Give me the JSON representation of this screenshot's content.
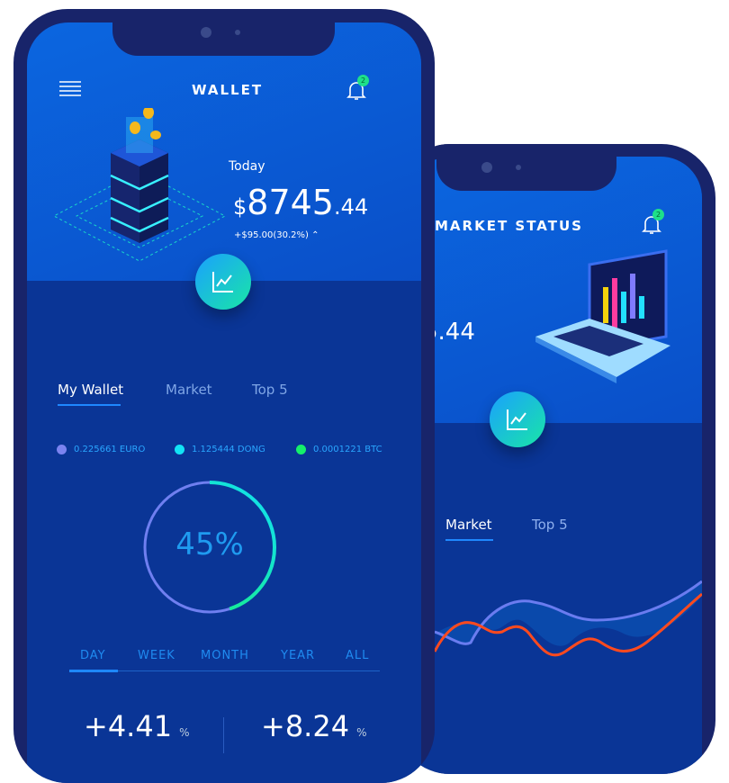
{
  "back_phone": {
    "title": "MARKET STATUS",
    "notification_count": "2",
    "balance_partial": "5.44",
    "tabs": [
      {
        "label": "Market",
        "active": true
      },
      {
        "label": "Top 5",
        "active": false
      }
    ],
    "chart_series_colors": [
      "#6a7cf0",
      "#ff5a1e"
    ]
  },
  "front_phone": {
    "title": "WALLET",
    "notification_count": "2",
    "balance": {
      "label": "Today",
      "currency": "$",
      "integer": "8745",
      "decimal": ".44",
      "change": "+$95.00(30.2%)"
    },
    "tabs": [
      {
        "label": "My Wallet",
        "active": true
      },
      {
        "label": "Market",
        "active": false
      },
      {
        "label": "Top 5",
        "active": false
      }
    ],
    "legend": [
      {
        "label": "0.225661 EURO",
        "color": "#7b83f0"
      },
      {
        "label": "1.125444 DONG",
        "color": "#12e4f5"
      },
      {
        "label": "0.0001221 BTC",
        "color": "#15f06a"
      }
    ],
    "progress": {
      "value": 45,
      "label": "45%"
    },
    "periods": [
      {
        "label": "DAY",
        "active": true
      },
      {
        "label": "WEEK"
      },
      {
        "label": "MONTH"
      },
      {
        "label": "YEAR"
      },
      {
        "label": "ALL"
      }
    ],
    "stats": [
      {
        "value": "+4.41",
        "unit": "%"
      },
      {
        "value": "+8.24",
        "unit": "%"
      }
    ]
  },
  "colors": {
    "header": "#0b5fd8",
    "body": "#0a3596",
    "frame": "#18246a",
    "accent": "#1e88ff"
  }
}
